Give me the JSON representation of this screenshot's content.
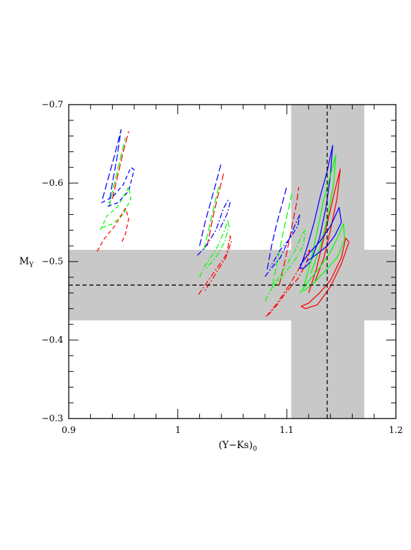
{
  "chart_data": {
    "type": "line",
    "title": "",
    "xlabel": "(Y−Ks)",
    "xlabel_subscript": "0",
    "ylabel": "M",
    "ylabel_subscript": "Y",
    "xlim": [
      0.9,
      1.2
    ],
    "ylim": [
      -0.3,
      -0.7
    ],
    "y_axis_inverted": true,
    "grid": false,
    "x_ticks": [
      {
        "value": 0.9,
        "label": "0.9"
      },
      {
        "value": 1.0,
        "label": "1"
      },
      {
        "value": 1.1,
        "label": "1.1"
      },
      {
        "value": 1.2,
        "label": "1.2"
      }
    ],
    "y_ticks": [
      {
        "value": -0.7,
        "label": "−0.7"
      },
      {
        "value": -0.6,
        "label": "−0.6"
      },
      {
        "value": -0.5,
        "label": "−0.5"
      },
      {
        "value": -0.4,
        "label": "−0.4"
      },
      {
        "value": -0.3,
        "label": "−0.3"
      }
    ],
    "reference": {
      "x": 1.137,
      "x_band": [
        1.104,
        1.171
      ],
      "y": -0.47,
      "y_band": [
        -0.425,
        -0.515
      ],
      "band_color": "#c8c8c8",
      "line_color": "#000000"
    },
    "series": [
      {
        "color": "#0000ff",
        "dash": "long-dash",
        "points": [
          [
            0.931,
            -0.58
          ],
          [
            0.937,
            -0.61
          ],
          [
            0.942,
            -0.635
          ],
          [
            0.948,
            -0.668
          ],
          [
            0.944,
            -0.63
          ],
          [
            0.94,
            -0.6
          ],
          [
            0.937,
            -0.575
          ]
        ]
      },
      {
        "color": "#ff0000",
        "dash": "long-dash",
        "points": [
          [
            0.94,
            -0.58
          ],
          [
            0.945,
            -0.61
          ],
          [
            0.95,
            -0.64
          ],
          [
            0.955,
            -0.666
          ]
        ]
      },
      {
        "color": "#00ff00",
        "dash": "long-dash",
        "points": [
          [
            0.937,
            -0.57
          ],
          [
            0.942,
            -0.6
          ],
          [
            0.947,
            -0.63
          ],
          [
            0.952,
            -0.658
          ]
        ]
      },
      {
        "color": "#0000ff",
        "dash": "dashed",
        "points": [
          [
            0.93,
            -0.575
          ],
          [
            0.94,
            -0.582
          ],
          [
            0.95,
            -0.598
          ],
          [
            0.957,
            -0.62
          ],
          [
            0.96,
            -0.617
          ],
          [
            0.955,
            -0.59
          ],
          [
            0.945,
            -0.575
          ],
          [
            0.935,
            -0.57
          ]
        ]
      },
      {
        "color": "#00ff00",
        "dash": "dashed",
        "points": [
          [
            0.929,
            -0.54
          ],
          [
            0.935,
            -0.558
          ],
          [
            0.945,
            -0.57
          ],
          [
            0.955,
            -0.595
          ],
          [
            0.957,
            -0.58
          ],
          [
            0.95,
            -0.56
          ],
          [
            0.94,
            -0.548
          ],
          [
            0.93,
            -0.543
          ]
        ]
      },
      {
        "color": "#ff0000",
        "dash": "dashed",
        "points": [
          [
            0.926,
            -0.513
          ],
          [
            0.932,
            -0.528
          ],
          [
            0.942,
            -0.545
          ],
          [
            0.952,
            -0.568
          ],
          [
            0.955,
            -0.555
          ],
          [
            0.952,
            -0.535
          ],
          [
            0.948,
            -0.523
          ]
        ]
      },
      {
        "color": "#0000ff",
        "dash": "long-dash",
        "points": [
          [
            1.02,
            -0.52
          ],
          [
            1.025,
            -0.55
          ],
          [
            1.03,
            -0.575
          ],
          [
            1.035,
            -0.6
          ],
          [
            1.04,
            -0.626
          ]
        ]
      },
      {
        "color": "#ff0000",
        "dash": "long-dash",
        "points": [
          [
            1.027,
            -0.52
          ],
          [
            1.032,
            -0.555
          ],
          [
            1.037,
            -0.585
          ],
          [
            1.042,
            -0.612
          ]
        ]
      },
      {
        "color": "#00ff00",
        "dash": "long-dash",
        "points": [
          [
            1.024,
            -0.515
          ],
          [
            1.029,
            -0.545
          ],
          [
            1.034,
            -0.575
          ],
          [
            1.038,
            -0.598
          ]
        ]
      },
      {
        "color": "#0000ff",
        "dash": "dot-dash",
        "points": [
          [
            1.018,
            -0.508
          ],
          [
            1.025,
            -0.518
          ],
          [
            1.035,
            -0.54
          ],
          [
            1.042,
            -0.568
          ],
          [
            1.046,
            -0.578
          ],
          [
            1.048,
            -0.575
          ],
          [
            1.045,
            -0.56
          ],
          [
            1.038,
            -0.54
          ]
        ]
      },
      {
        "color": "#00ff00",
        "dash": "dot-dash",
        "points": [
          [
            1.02,
            -0.48
          ],
          [
            1.025,
            -0.495
          ],
          [
            1.035,
            -0.515
          ],
          [
            1.043,
            -0.54
          ],
          [
            1.046,
            -0.553
          ],
          [
            1.047,
            -0.545
          ],
          [
            1.043,
            -0.525
          ],
          [
            1.035,
            -0.505
          ],
          [
            1.025,
            -0.49
          ]
        ]
      },
      {
        "color": "#ff0000",
        "dash": "dot-dash",
        "points": [
          [
            1.019,
            -0.458
          ],
          [
            1.025,
            -0.47
          ],
          [
            1.035,
            -0.49
          ],
          [
            1.045,
            -0.51
          ],
          [
            1.048,
            -0.533
          ],
          [
            1.049,
            -0.525
          ],
          [
            1.044,
            -0.505
          ],
          [
            1.035,
            -0.485
          ],
          [
            1.025,
            -0.463
          ]
        ]
      },
      {
        "color": "#0000ff",
        "dash": "long-dash",
        "points": [
          [
            1.082,
            -0.49
          ],
          [
            1.086,
            -0.52
          ],
          [
            1.091,
            -0.55
          ],
          [
            1.097,
            -0.58
          ],
          [
            1.1,
            -0.596
          ]
        ]
      },
      {
        "color": "#00ff00",
        "dash": "long-dash",
        "points": [
          [
            1.087,
            -0.47
          ],
          [
            1.092,
            -0.505
          ],
          [
            1.097,
            -0.54
          ],
          [
            1.102,
            -0.57
          ],
          [
            1.105,
            -0.59
          ]
        ]
      },
      {
        "color": "#ff0000",
        "dash": "long-dash",
        "points": [
          [
            1.093,
            -0.47
          ],
          [
            1.099,
            -0.505
          ],
          [
            1.104,
            -0.54
          ],
          [
            1.109,
            -0.575
          ],
          [
            1.111,
            -0.595
          ]
        ]
      },
      {
        "color": "#0000ff",
        "dash": "dot-dash",
        "points": [
          [
            1.08,
            -0.481
          ],
          [
            1.085,
            -0.49
          ],
          [
            1.094,
            -0.505
          ],
          [
            1.102,
            -0.528
          ],
          [
            1.108,
            -0.548
          ],
          [
            1.112,
            -0.56
          ],
          [
            1.11,
            -0.545
          ],
          [
            1.102,
            -0.528
          ],
          [
            1.094,
            -0.515
          ],
          [
            1.085,
            -0.493
          ]
        ]
      },
      {
        "color": "#00ff00",
        "dash": "dot-dash",
        "points": [
          [
            1.08,
            -0.45
          ],
          [
            1.088,
            -0.47
          ],
          [
            1.098,
            -0.492
          ],
          [
            1.108,
            -0.515
          ],
          [
            1.114,
            -0.535
          ],
          [
            1.117,
            -0.54
          ],
          [
            1.115,
            -0.52
          ],
          [
            1.108,
            -0.503
          ],
          [
            1.098,
            -0.485
          ],
          [
            1.088,
            -0.468
          ]
        ]
      },
      {
        "color": "#ff0000",
        "dash": "dot-dash",
        "points": [
          [
            1.081,
            -0.43
          ],
          [
            1.09,
            -0.445
          ],
          [
            1.1,
            -0.465
          ],
          [
            1.11,
            -0.488
          ],
          [
            1.117,
            -0.508
          ],
          [
            1.121,
            -0.515
          ],
          [
            1.118,
            -0.498
          ],
          [
            1.11,
            -0.478
          ],
          [
            1.1,
            -0.462
          ],
          [
            1.09,
            -0.443
          ],
          [
            1.083,
            -0.432
          ]
        ]
      },
      {
        "color": "#0000ff",
        "dash": "solid",
        "points": [
          [
            1.112,
            -0.491
          ],
          [
            1.119,
            -0.52
          ],
          [
            1.125,
            -0.55
          ],
          [
            1.131,
            -0.585
          ],
          [
            1.137,
            -0.615
          ],
          [
            1.142,
            -0.648
          ],
          [
            1.14,
            -0.61
          ],
          [
            1.136,
            -0.57
          ],
          [
            1.13,
            -0.53
          ],
          [
            1.122,
            -0.5
          ],
          [
            1.116,
            -0.492
          ],
          [
            1.112,
            -0.491
          ]
        ]
      },
      {
        "color": "#00ff00",
        "dash": "solid",
        "points": [
          [
            1.115,
            -0.465
          ],
          [
            1.122,
            -0.5
          ],
          [
            1.128,
            -0.54
          ],
          [
            1.134,
            -0.58
          ],
          [
            1.14,
            -0.61
          ],
          [
            1.145,
            -0.636
          ],
          [
            1.143,
            -0.6
          ],
          [
            1.138,
            -0.56
          ],
          [
            1.131,
            -0.52
          ],
          [
            1.122,
            -0.485
          ]
        ]
      },
      {
        "color": "#ff0000",
        "dash": "solid",
        "points": [
          [
            1.12,
            -0.46
          ],
          [
            1.127,
            -0.49
          ],
          [
            1.133,
            -0.525
          ],
          [
            1.139,
            -0.56
          ],
          [
            1.144,
            -0.59
          ],
          [
            1.149,
            -0.618
          ],
          [
            1.146,
            -0.58
          ],
          [
            1.14,
            -0.54
          ],
          [
            1.134,
            -0.505
          ],
          [
            1.126,
            -0.475
          ]
        ]
      },
      {
        "color": "#0000ff",
        "dash": "solid",
        "points": [
          [
            1.112,
            -0.495
          ],
          [
            1.12,
            -0.51
          ],
          [
            1.13,
            -0.525
          ],
          [
            1.14,
            -0.545
          ],
          [
            1.146,
            -0.563
          ],
          [
            1.148,
            -0.569
          ],
          [
            1.15,
            -0.55
          ],
          [
            1.144,
            -0.533
          ],
          [
            1.137,
            -0.52
          ],
          [
            1.128,
            -0.51
          ],
          [
            1.118,
            -0.5
          ]
        ]
      },
      {
        "color": "#00ff00",
        "dash": "solid",
        "points": [
          [
            1.112,
            -0.46
          ],
          [
            1.12,
            -0.475
          ],
          [
            1.13,
            -0.492
          ],
          [
            1.14,
            -0.512
          ],
          [
            1.148,
            -0.535
          ],
          [
            1.152,
            -0.548
          ],
          [
            1.153,
            -0.528
          ],
          [
            1.146,
            -0.505
          ],
          [
            1.135,
            -0.488
          ],
          [
            1.125,
            -0.473
          ],
          [
            1.115,
            -0.462
          ]
        ]
      },
      {
        "color": "#ff0000",
        "dash": "solid",
        "points": [
          [
            1.113,
            -0.443
          ],
          [
            1.12,
            -0.447
          ],
          [
            1.13,
            -0.46
          ],
          [
            1.14,
            -0.476
          ],
          [
            1.15,
            -0.505
          ],
          [
            1.154,
            -0.53
          ],
          [
            1.157,
            -0.525
          ],
          [
            1.15,
            -0.497
          ],
          [
            1.14,
            -0.468
          ],
          [
            1.128,
            -0.445
          ],
          [
            1.117,
            -0.44
          ],
          [
            1.113,
            -0.443
          ]
        ]
      }
    ]
  }
}
